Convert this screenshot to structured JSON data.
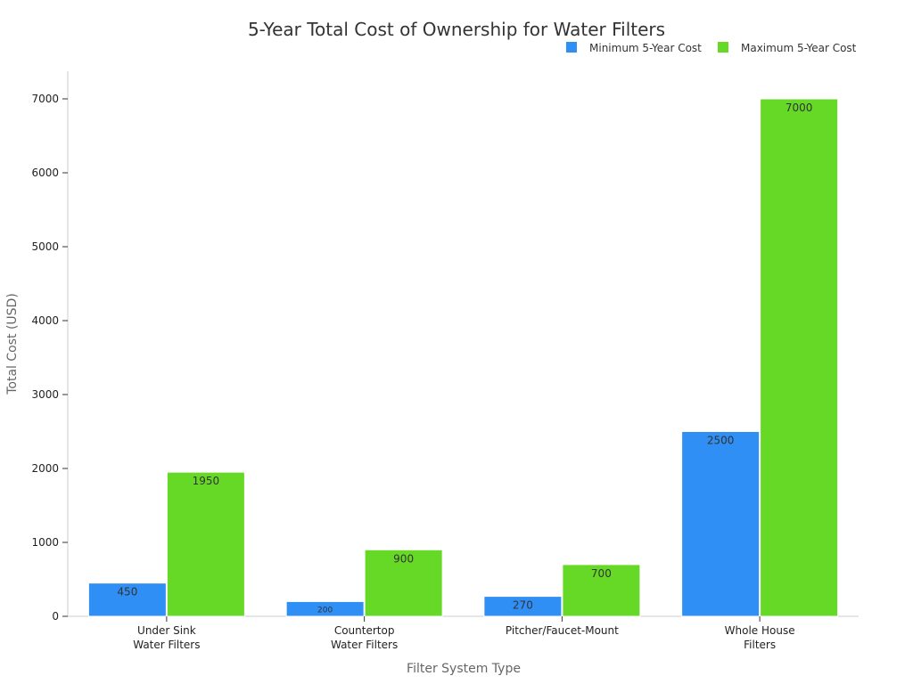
{
  "chart_data": {
    "type": "bar",
    "title": "5-Year Total Cost of Ownership for Water Filters",
    "xlabel": "Filter System Type",
    "ylabel": "Total Cost (USD)",
    "ylim": [
      0,
      7400
    ],
    "yticks": [
      0,
      1000,
      2000,
      3000,
      4000,
      5000,
      6000,
      7000
    ],
    "categories": [
      [
        "Under Sink",
        "Water Filters"
      ],
      [
        "Countertop",
        "Water Filters"
      ],
      [
        "Pitcher/Faucet-Mount"
      ],
      [
        "Whole House",
        "Filters"
      ]
    ],
    "series": [
      {
        "name": "Minimum 5-Year Cost",
        "color": "#2f8ff4",
        "values": [
          450,
          200,
          270,
          2500
        ]
      },
      {
        "name": "Maximum 5-Year Cost",
        "color": "#66d926",
        "values": [
          1950,
          900,
          700,
          7000
        ]
      }
    ],
    "legend_position": "top-right",
    "grid": false
  }
}
